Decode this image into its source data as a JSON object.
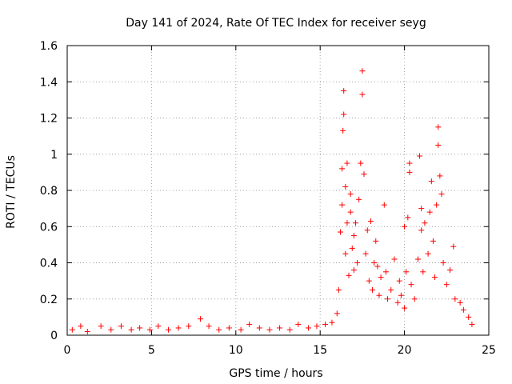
{
  "chart_data": {
    "type": "scatter",
    "title": "Day 141 of 2024, Rate Of TEC Index for receiver seyg",
    "xlabel": "GPS time / hours",
    "ylabel": "ROTI / TECUs",
    "xlim": [
      0,
      25
    ],
    "ylim": [
      0,
      1.6
    ],
    "x_ticks": [
      0,
      5,
      10,
      15,
      20,
      25
    ],
    "x_tick_labels": [
      "0",
      "5",
      "10",
      "15",
      "20",
      "25"
    ],
    "y_ticks": [
      0,
      0.2,
      0.4,
      0.6,
      0.8,
      1,
      1.2,
      1.4,
      1.6
    ],
    "y_tick_labels": [
      "0",
      "0.2",
      "0.4",
      "0.6",
      "0.8",
      "1",
      "1.2",
      "1.4",
      "1.6"
    ],
    "grid": true,
    "marker": "+",
    "color": "#ff0000",
    "series": [
      {
        "values": [
          [
            0.3,
            0.03
          ],
          [
            0.8,
            0.05
          ],
          [
            1.2,
            0.02
          ],
          [
            2.0,
            0.05
          ],
          [
            2.6,
            0.03
          ],
          [
            3.2,
            0.05
          ],
          [
            3.8,
            0.03
          ],
          [
            4.3,
            0.04
          ],
          [
            4.9,
            0.03
          ],
          [
            5.4,
            0.05
          ],
          [
            6.0,
            0.03
          ],
          [
            6.6,
            0.04
          ],
          [
            7.2,
            0.05
          ],
          [
            7.9,
            0.09
          ],
          [
            8.4,
            0.05
          ],
          [
            9.0,
            0.03
          ],
          [
            9.6,
            0.04
          ],
          [
            10.3,
            0.03
          ],
          [
            10.8,
            0.06
          ],
          [
            11.4,
            0.04
          ],
          [
            12.0,
            0.03
          ],
          [
            12.6,
            0.04
          ],
          [
            13.2,
            0.03
          ],
          [
            13.7,
            0.06
          ],
          [
            14.3,
            0.04
          ],
          [
            14.8,
            0.05
          ],
          [
            15.3,
            0.06
          ],
          [
            15.7,
            0.07
          ],
          [
            16.0,
            0.12
          ],
          [
            16.1,
            0.25
          ],
          [
            16.2,
            0.57
          ],
          [
            16.3,
            0.72
          ],
          [
            16.3,
            0.92
          ],
          [
            16.35,
            1.13
          ],
          [
            16.4,
            1.22
          ],
          [
            16.4,
            1.35
          ],
          [
            16.5,
            0.82
          ],
          [
            16.5,
            0.45
          ],
          [
            16.6,
            0.95
          ],
          [
            16.6,
            0.62
          ],
          [
            16.7,
            0.33
          ],
          [
            16.8,
            0.68
          ],
          [
            16.8,
            0.78
          ],
          [
            16.9,
            0.48
          ],
          [
            17.0,
            0.55
          ],
          [
            17.0,
            0.36
          ],
          [
            17.1,
            0.62
          ],
          [
            17.2,
            0.4
          ],
          [
            17.3,
            0.75
          ],
          [
            17.4,
            0.95
          ],
          [
            17.5,
            1.33
          ],
          [
            17.5,
            1.46
          ],
          [
            17.6,
            0.89
          ],
          [
            17.7,
            0.45
          ],
          [
            17.8,
            0.58
          ],
          [
            17.9,
            0.3
          ],
          [
            18.0,
            0.63
          ],
          [
            18.1,
            0.25
          ],
          [
            18.2,
            0.4
          ],
          [
            18.3,
            0.52
          ],
          [
            18.4,
            0.38
          ],
          [
            18.5,
            0.22
          ],
          [
            18.6,
            0.32
          ],
          [
            18.8,
            0.72
          ],
          [
            18.9,
            0.35
          ],
          [
            19.0,
            0.2
          ],
          [
            19.2,
            0.25
          ],
          [
            19.4,
            0.42
          ],
          [
            19.6,
            0.18
          ],
          [
            19.7,
            0.3
          ],
          [
            19.8,
            0.22
          ],
          [
            20.0,
            0.6
          ],
          [
            20.0,
            0.15
          ],
          [
            20.1,
            0.35
          ],
          [
            20.2,
            0.65
          ],
          [
            20.3,
            0.95
          ],
          [
            20.3,
            0.9
          ],
          [
            20.4,
            0.28
          ],
          [
            20.6,
            0.2
          ],
          [
            20.8,
            0.42
          ],
          [
            20.9,
            0.99
          ],
          [
            21.0,
            0.7
          ],
          [
            21.0,
            0.58
          ],
          [
            21.1,
            0.35
          ],
          [
            21.2,
            0.62
          ],
          [
            21.4,
            0.45
          ],
          [
            21.5,
            0.68
          ],
          [
            21.6,
            0.85
          ],
          [
            21.7,
            0.52
          ],
          [
            21.8,
            0.32
          ],
          [
            21.9,
            0.72
          ],
          [
            22.0,
            1.05
          ],
          [
            22.0,
            1.15
          ],
          [
            22.1,
            0.88
          ],
          [
            22.2,
            0.78
          ],
          [
            22.3,
            0.4
          ],
          [
            22.5,
            0.28
          ],
          [
            22.7,
            0.36
          ],
          [
            22.9,
            0.49
          ],
          [
            23.0,
            0.2
          ],
          [
            23.3,
            0.18
          ],
          [
            23.5,
            0.14
          ],
          [
            23.8,
            0.1
          ],
          [
            24.0,
            0.06
          ]
        ]
      }
    ]
  }
}
